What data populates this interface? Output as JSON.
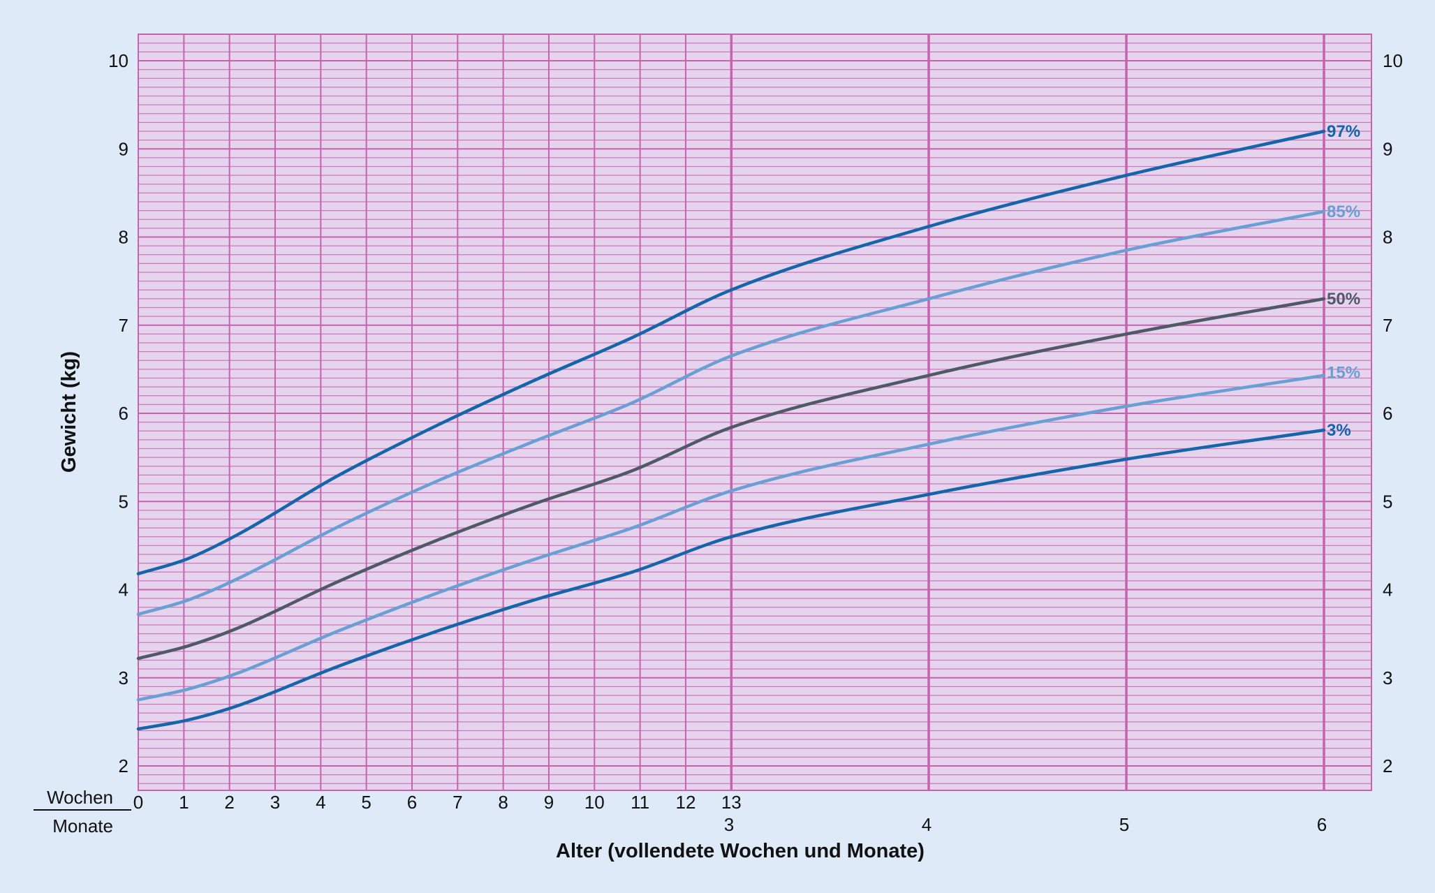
{
  "chart_data": {
    "type": "line",
    "ylabel": "Gewicht (kg)",
    "xlabel": "Alter (vollendete Wochen und Monate)",
    "x_unit_labels": {
      "top": "Wochen",
      "bottom": "Monate"
    },
    "ylim": [
      1.7,
      10.3
    ],
    "y_ticks": [
      "2",
      "3",
      "4",
      "5",
      "6",
      "7",
      "8",
      "9",
      "10"
    ],
    "week_ticks": [
      "0",
      "1",
      "2",
      "3",
      "4",
      "5",
      "6",
      "7",
      "8",
      "9",
      "10",
      "11",
      "12",
      "13"
    ],
    "month_ticks": [
      "3",
      "4",
      "5",
      "6"
    ],
    "grid": true,
    "series": [
      {
        "name": "97%",
        "color": "#1565a8",
        "x_months": [
          0,
          0.25,
          0.5,
          1,
          1.5,
          2,
          2.5,
          3,
          4,
          5,
          6
        ],
        "values": [
          4.18,
          4.35,
          4.62,
          5.28,
          5.85,
          6.37,
          6.86,
          7.4,
          8.12,
          8.7,
          9.2
        ]
      },
      {
        "name": "85%",
        "color": "#6a9fd4",
        "x_months": [
          0,
          0.25,
          0.5,
          1,
          1.5,
          2,
          2.5,
          3,
          4,
          5,
          6
        ],
        "values": [
          3.72,
          3.88,
          4.12,
          4.7,
          5.22,
          5.68,
          6.12,
          6.65,
          7.3,
          7.85,
          8.29
        ]
      },
      {
        "name": "50%",
        "color": "#505a66",
        "x_months": [
          0,
          0.25,
          0.5,
          1,
          1.5,
          2,
          2.5,
          3,
          4,
          5,
          6
        ],
        "values": [
          3.22,
          3.36,
          3.56,
          4.08,
          4.55,
          4.97,
          5.35,
          5.84,
          6.43,
          6.9,
          7.3
        ]
      },
      {
        "name": "15%",
        "color": "#6a9fd4",
        "x_months": [
          0,
          0.25,
          0.5,
          1,
          1.5,
          2,
          2.5,
          3,
          4,
          5,
          6
        ],
        "values": [
          2.75,
          2.87,
          3.05,
          3.52,
          3.95,
          4.34,
          4.7,
          5.12,
          5.65,
          6.08,
          6.43
        ]
      },
      {
        "name": "3%",
        "color": "#1565a8",
        "x_months": [
          0,
          0.25,
          0.5,
          1,
          1.5,
          2,
          2.5,
          3,
          4,
          5,
          6
        ],
        "values": [
          2.42,
          2.52,
          2.68,
          3.12,
          3.52,
          3.88,
          4.2,
          4.6,
          5.08,
          5.48,
          5.81
        ]
      }
    ],
    "colors": {
      "background": "#deeaf7",
      "plot_background": "#e6d3ee",
      "grid": "#c563ad",
      "text": "#111111"
    }
  }
}
